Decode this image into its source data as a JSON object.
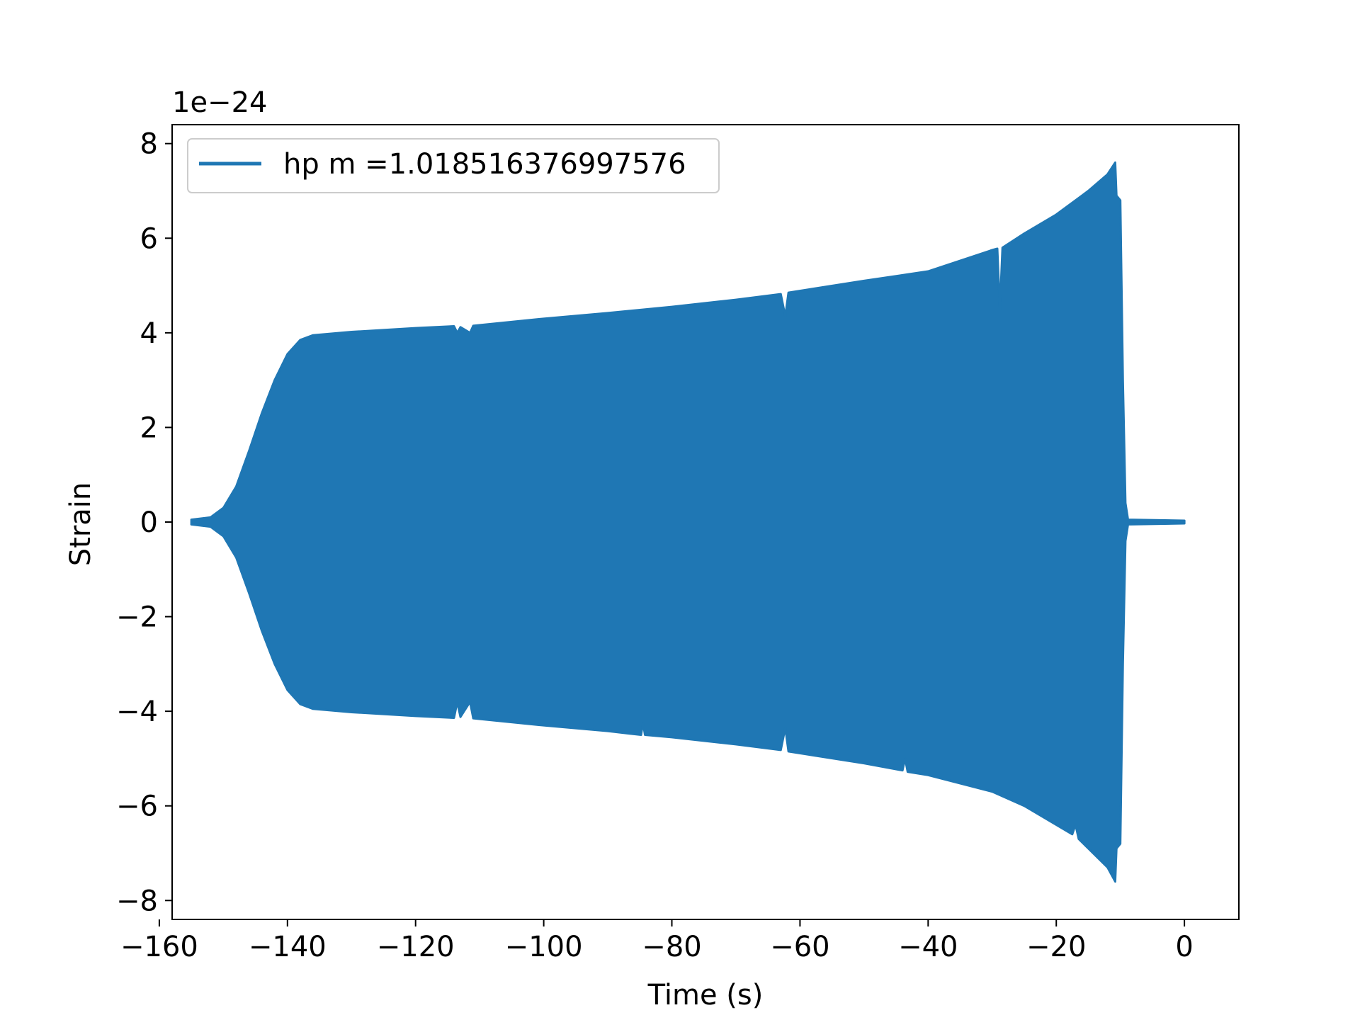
{
  "chart_data": {
    "type": "line",
    "xlabel": "Time (s)",
    "ylabel": "Strain",
    "y_offset_label": "1e−24",
    "xlim": [
      -158,
      8.5
    ],
    "ylim": [
      -8.4,
      8.4
    ],
    "x_ticks": [
      -160,
      -140,
      -120,
      -100,
      -80,
      -60,
      -40,
      -20,
      0
    ],
    "x_tick_labels": [
      "−160",
      "−140",
      "−120",
      "−100",
      "−80",
      "−60",
      "−40",
      "−20",
      "0"
    ],
    "y_ticks": [
      -8,
      -6,
      -4,
      -2,
      0,
      2,
      4,
      6,
      8
    ],
    "y_tick_labels": [
      "−8",
      "−6",
      "−4",
      "−2",
      "0",
      "2",
      "4",
      "6",
      "8"
    ],
    "grid": false,
    "legend": {
      "position": "top-left"
    },
    "series": [
      {
        "name": "hp m =1.018516376997576",
        "color": "#1f77b4",
        "envelope_upper": [
          [
            -155,
            0.05
          ],
          [
            -152,
            0.1
          ],
          [
            -150,
            0.3
          ],
          [
            -148,
            0.75
          ],
          [
            -146,
            1.5
          ],
          [
            -144,
            2.3
          ],
          [
            -142,
            3.0
          ],
          [
            -140,
            3.55
          ],
          [
            -138,
            3.85
          ],
          [
            -136,
            3.95
          ],
          [
            -130,
            4.02
          ],
          [
            -120,
            4.1
          ],
          [
            -114,
            4.14
          ],
          [
            -113.5,
            4.0
          ],
          [
            -113,
            4.12
          ],
          [
            -111.5,
            4.0
          ],
          [
            -111,
            4.15
          ],
          [
            -100,
            4.3
          ],
          [
            -90,
            4.42
          ],
          [
            -80,
            4.55
          ],
          [
            -70,
            4.7
          ],
          [
            -63,
            4.82
          ],
          [
            -62.3,
            4.35
          ],
          [
            -61.8,
            4.85
          ],
          [
            -50,
            5.1
          ],
          [
            -40,
            5.3
          ],
          [
            -30,
            5.75
          ],
          [
            -29.2,
            5.78
          ],
          [
            -28.8,
            4.5
          ],
          [
            -28.4,
            5.8
          ],
          [
            -25,
            6.1
          ],
          [
            -20,
            6.5
          ],
          [
            -15,
            7.0
          ],
          [
            -12,
            7.35
          ],
          [
            -10.8,
            7.6
          ],
          [
            -10.6,
            6.9
          ],
          [
            -10.0,
            6.8
          ],
          [
            -9.6,
            3.0
          ],
          [
            -9.2,
            0.4
          ],
          [
            -8.8,
            0.05
          ],
          [
            0,
            0.03
          ]
        ],
        "envelope_lower": [
          [
            -155,
            -0.05
          ],
          [
            -152,
            -0.1
          ],
          [
            -150,
            -0.3
          ],
          [
            -148,
            -0.75
          ],
          [
            -146,
            -1.5
          ],
          [
            -144,
            -2.3
          ],
          [
            -142,
            -3.0
          ],
          [
            -140,
            -3.55
          ],
          [
            -138,
            -3.85
          ],
          [
            -136,
            -3.95
          ],
          [
            -130,
            -4.02
          ],
          [
            -120,
            -4.1
          ],
          [
            -114,
            -4.14
          ],
          [
            -113.5,
            -3.8
          ],
          [
            -113,
            -4.12
          ],
          [
            -111.5,
            -3.8
          ],
          [
            -111,
            -4.15
          ],
          [
            -100,
            -4.3
          ],
          [
            -90,
            -4.42
          ],
          [
            -84.8,
            -4.5
          ],
          [
            -84.5,
            -4.25
          ],
          [
            -84.2,
            -4.5
          ],
          [
            -80,
            -4.55
          ],
          [
            -70,
            -4.7
          ],
          [
            -63,
            -4.82
          ],
          [
            -62.3,
            -4.35
          ],
          [
            -61.8,
            -4.85
          ],
          [
            -50,
            -5.1
          ],
          [
            -44,
            -5.25
          ],
          [
            -43.6,
            -5.0
          ],
          [
            -43.2,
            -5.28
          ],
          [
            -40,
            -5.35
          ],
          [
            -30,
            -5.7
          ],
          [
            -25,
            -6.0
          ],
          [
            -20,
            -6.4
          ],
          [
            -17.5,
            -6.6
          ],
          [
            -17.0,
            -6.4
          ],
          [
            -16.5,
            -6.7
          ],
          [
            -15,
            -6.9
          ],
          [
            -12,
            -7.3
          ],
          [
            -10.8,
            -7.6
          ],
          [
            -10.6,
            -6.9
          ],
          [
            -10.0,
            -6.8
          ],
          [
            -9.6,
            -3.0
          ],
          [
            -9.2,
            -0.4
          ],
          [
            -8.8,
            -0.05
          ],
          [
            0,
            -0.03
          ]
        ]
      }
    ]
  }
}
